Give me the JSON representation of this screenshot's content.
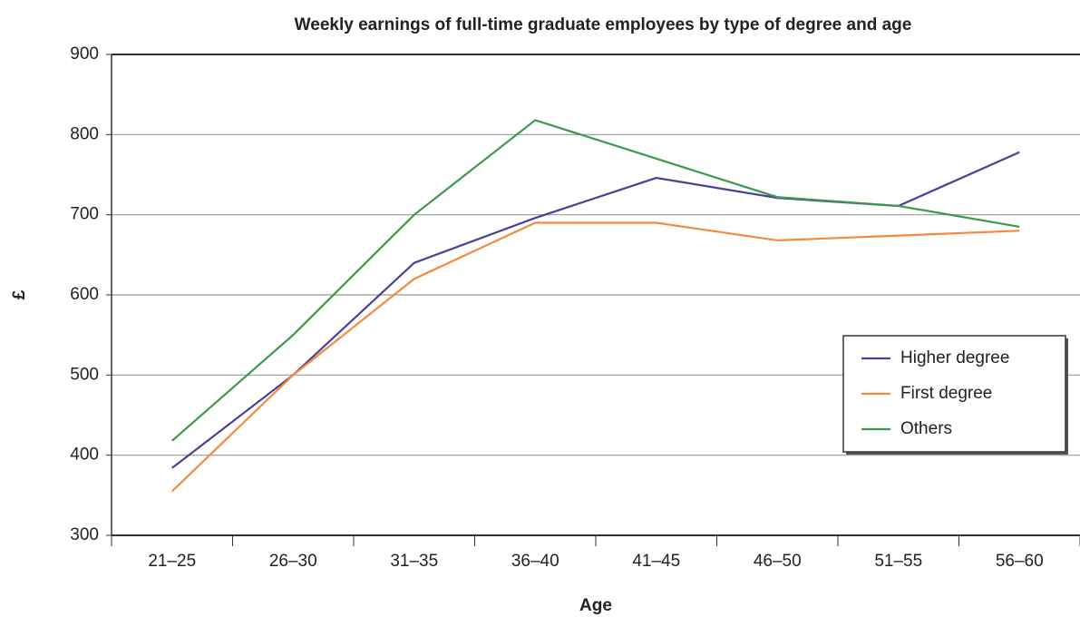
{
  "chart_data": {
    "type": "line",
    "title": "Weekly earnings of full-time graduate employees by type of degree and age",
    "xlabel": "Age",
    "ylabel": "£",
    "categories": [
      "21–25",
      "26–30",
      "31–35",
      "36–40",
      "41–45",
      "46–50",
      "51–55",
      "56–60"
    ],
    "series": [
      {
        "name": "Higher degree",
        "color": "#4b3f9a",
        "values": [
          384,
          500,
          640,
          696,
          746,
          721,
          711,
          778
        ]
      },
      {
        "name": "First degree",
        "color": "#f58a3c",
        "values": [
          355,
          500,
          620,
          690,
          690,
          668,
          674,
          680
        ]
      },
      {
        "name": "Others",
        "color": "#3a9a4a",
        "values": [
          418,
          550,
          700,
          818,
          770,
          722,
          711,
          685
        ]
      }
    ],
    "ylim": [
      300,
      900
    ],
    "yticks": [
      300,
      400,
      500,
      600,
      700,
      800,
      900
    ],
    "grid": true,
    "legend": "right"
  }
}
